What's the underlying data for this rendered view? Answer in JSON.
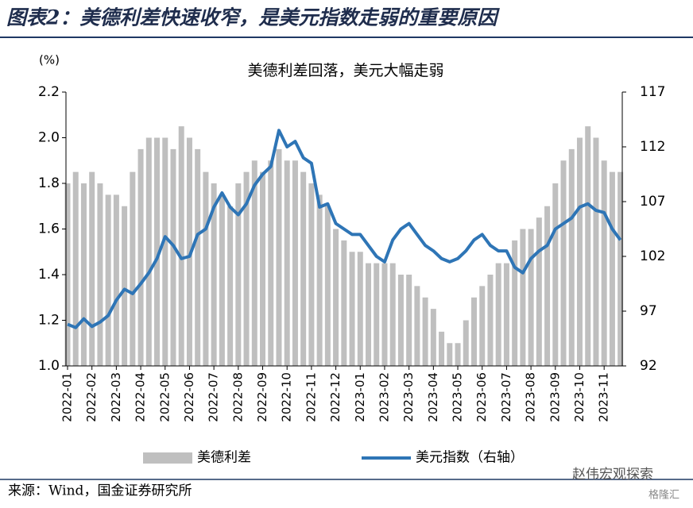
{
  "header": {
    "title": "图表2：美德利差快速收窄，是美元指数走弱的重要原因"
  },
  "chart_data": {
    "type": "bar-line",
    "title": "美德利差回落，美元大幅走弱",
    "y_unit": "(%)",
    "categories": [
      "2022-01",
      null,
      null,
      "2022-02",
      null,
      null,
      "2022-03",
      null,
      null,
      "2022-04",
      null,
      null,
      "2022-05",
      null,
      null,
      "2022-06",
      null,
      null,
      "2022-07",
      null,
      null,
      "2022-08",
      null,
      null,
      "2022-09",
      null,
      null,
      "2022-10",
      null,
      null,
      "2022-11",
      null,
      null,
      "2022-12",
      null,
      null,
      "2023-01",
      null,
      null,
      "2023-02",
      null,
      null,
      "2023-03",
      null,
      null,
      "2023-04",
      null,
      null,
      "2023-05",
      null,
      null,
      "2023-06",
      null,
      null,
      "2023-07",
      null,
      null,
      "2023-08",
      null,
      null,
      "2023-09",
      null,
      null,
      "2023-10",
      null,
      null,
      "2023-11",
      null,
      null
    ],
    "series": [
      {
        "name": "美德利差",
        "type": "bar",
        "color": "#bfbfbf",
        "axis": "y",
        "values": [
          1.8,
          1.85,
          1.8,
          1.85,
          1.8,
          1.75,
          1.75,
          1.7,
          1.85,
          1.95,
          2.0,
          2.0,
          2.0,
          1.95,
          2.05,
          2.0,
          1.95,
          1.85,
          1.8,
          1.75,
          1.7,
          1.8,
          1.85,
          1.9,
          1.85,
          1.9,
          1.95,
          1.9,
          1.9,
          1.85,
          1.8,
          1.75,
          1.7,
          1.6,
          1.55,
          1.5,
          1.5,
          1.45,
          1.45,
          1.45,
          1.45,
          1.4,
          1.4,
          1.35,
          1.3,
          1.25,
          1.15,
          1.1,
          1.1,
          1.2,
          1.3,
          1.35,
          1.4,
          1.45,
          1.45,
          1.55,
          1.6,
          1.6,
          1.65,
          1.7,
          1.8,
          1.9,
          1.95,
          2.0,
          2.05,
          2.0,
          1.9,
          1.85,
          1.85
        ]
      },
      {
        "name": "美元指数（右轴）",
        "type": "line",
        "color": "#2e75b6",
        "axis": "y2",
        "values": [
          95.8,
          95.5,
          96.3,
          95.6,
          96.0,
          96.6,
          98.0,
          99.0,
          98.6,
          99.5,
          100.5,
          101.8,
          103.8,
          103.0,
          101.8,
          102.0,
          104.0,
          104.5,
          106.5,
          107.8,
          106.5,
          105.8,
          106.8,
          108.5,
          109.5,
          110.2,
          113.5,
          112.0,
          112.5,
          111.0,
          110.5,
          106.5,
          106.8,
          105.0,
          104.5,
          104.0,
          104.0,
          103.0,
          102.0,
          101.5,
          103.5,
          104.5,
          105.0,
          104.0,
          103.0,
          102.5,
          101.8,
          101.5,
          101.8,
          102.5,
          103.5,
          104.0,
          103.0,
          102.5,
          102.5,
          101.0,
          100.5,
          101.8,
          102.5,
          103.0,
          104.5,
          105.0,
          105.5,
          106.5,
          106.8,
          106.2,
          106.0,
          104.5,
          103.5
        ]
      }
    ],
    "ylim": [
      1.0,
      2.2
    ],
    "yticks": [
      {
        "value": 1.0,
        "label": "1.0"
      },
      {
        "value": 1.2,
        "label": "1.2"
      },
      {
        "value": 1.4,
        "label": "1.4"
      },
      {
        "value": 1.6,
        "label": "1.6"
      },
      {
        "value": 1.8,
        "label": "1.8"
      },
      {
        "value": 2.0,
        "label": "2.0"
      },
      {
        "value": 2.2,
        "label": "2.2"
      }
    ],
    "y2lim": [
      92,
      117
    ],
    "y2ticks": [
      92,
      97,
      102,
      107,
      112,
      117
    ],
    "legend": "bottom"
  },
  "footer": {
    "source": "来源：Wind，国金证券研究所",
    "watermark": "赵伟宏观探索",
    "watermark2": "格隆汇"
  }
}
